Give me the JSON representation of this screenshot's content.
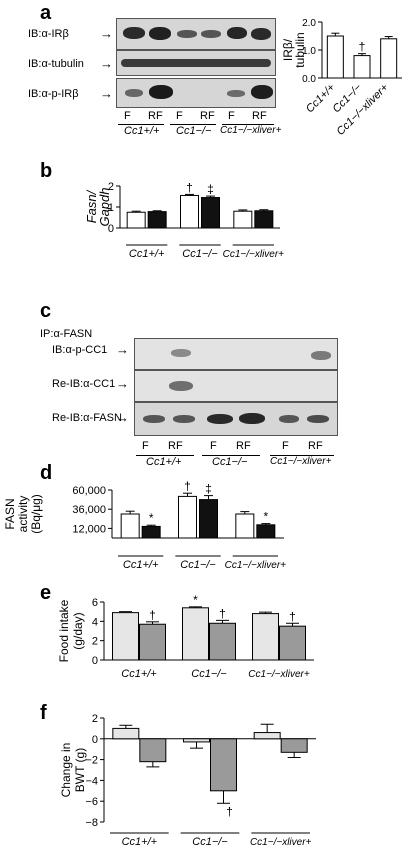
{
  "figure": {
    "panel_a": {
      "letter": "a",
      "blot_rows": [
        "IB:α-IRβ",
        "IB:α-tubulin",
        "IB:α-p-IRβ"
      ],
      "lanes": [
        "F",
        "RF",
        "F",
        "RF",
        "F",
        "RF"
      ],
      "groups": [
        "Cc1+/+",
        "Cc1−/−",
        "Cc1−/−xliver+"
      ]
    },
    "panel_b": {
      "letter": "b"
    },
    "panel_c": {
      "letter": "c",
      "ip_label": "IP:α-FASN",
      "blot_rows": [
        "IB:α-p-CC1",
        "Re-IB:α-CC1",
        "Re-IB:α-FASN"
      ],
      "lanes": [
        "F",
        "RF",
        "F",
        "RF",
        "F",
        "RF"
      ],
      "groups": [
        "Cc1+/+",
        "Cc1−/−",
        "Cc1−/−xliver+"
      ]
    },
    "panel_d": {
      "letter": "d"
    },
    "panel_e": {
      "letter": "e"
    },
    "panel_f": {
      "letter": "f"
    }
  },
  "chart_data": [
    {
      "id": "a-inset",
      "type": "bar",
      "ylabel": "IRβ/ tubulin",
      "ylim": [
        0,
        2.0
      ],
      "yticks": [
        0.0,
        1.0,
        2.0
      ],
      "categories": [
        "Cc1+/+",
        "Cc1−/−",
        "Cc1−/−xliver+"
      ],
      "values": [
        1.5,
        0.8,
        1.4
      ],
      "errors": [
        0.1,
        0.07,
        0.08
      ],
      "annotations": [
        "",
        "†",
        ""
      ]
    },
    {
      "id": "b",
      "type": "bar",
      "ylabel": "Fasn/ Gapdh",
      "ylim": [
        0,
        2
      ],
      "yticks": [
        0,
        1,
        2
      ],
      "categories": [
        "Cc1+/+",
        "Cc1−/−",
        "Cc1−/−xliver+"
      ],
      "series": [
        {
          "values": [
            0.75,
            1.55,
            0.8
          ],
          "errors": [
            0.05,
            0.05,
            0.06
          ],
          "annotations": [
            "",
            "†",
            ""
          ],
          "color": "#ffffff"
        },
        {
          "values": [
            0.78,
            1.45,
            0.82
          ],
          "errors": [
            0.04,
            0.07,
            0.05
          ],
          "annotations": [
            "",
            "‡",
            ""
          ],
          "color": "#111111"
        }
      ]
    },
    {
      "id": "d",
      "type": "bar",
      "ylabel": "FASN activity (Bq/μg)",
      "ylim": [
        0,
        60000
      ],
      "yticks": [
        "12,000",
        "36,000",
        "60,000"
      ],
      "ytick_values": [
        12000,
        36000,
        60000
      ],
      "categories": [
        "Cc1+/+",
        "Cc1−/−",
        "Cc1−/−xliver+"
      ],
      "series": [
        {
          "values": [
            30000,
            52000,
            30000
          ],
          "errors": [
            3500,
            4000,
            3000
          ],
          "annotations": [
            "",
            "†",
            ""
          ],
          "color": "#ffffff"
        },
        {
          "values": [
            14500,
            48000,
            16500
          ],
          "errors": [
            1500,
            5000,
            1500
          ],
          "annotations": [
            "*",
            "‡",
            "*"
          ],
          "color": "#111111"
        }
      ]
    },
    {
      "id": "e",
      "type": "bar",
      "ylabel": "Food intake (g/day)",
      "ylim": [
        0,
        6
      ],
      "yticks": [
        0,
        2,
        4,
        6
      ],
      "categories": [
        "Cc1+/+",
        "Cc1−/−",
        "Cc1−/−xliver+"
      ],
      "series": [
        {
          "values": [
            4.9,
            5.4,
            4.8
          ],
          "errors": [
            0.1,
            0.1,
            0.15
          ],
          "annotations": [
            "",
            "*",
            ""
          ],
          "color": "#e6e6e6"
        },
        {
          "values": [
            3.7,
            3.8,
            3.5
          ],
          "errors": [
            0.25,
            0.3,
            0.3
          ],
          "annotations": [
            "†",
            "†",
            "†"
          ],
          "color": "#9a9a9a"
        }
      ]
    },
    {
      "id": "f",
      "type": "bar",
      "ylabel": "Change in BWT (g)",
      "ylim": [
        -8,
        2
      ],
      "yticks": [
        2,
        0,
        -2,
        -4,
        -6,
        -8
      ],
      "categories": [
        "Cc1+/+",
        "Cc1−/−",
        "Cc1−/−xliver+"
      ],
      "series": [
        {
          "values": [
            1.0,
            -0.3,
            0.6
          ],
          "errors": [
            0.3,
            0.6,
            0.8
          ],
          "annotations": [
            "",
            "",
            ""
          ],
          "color": "#e6e6e6"
        },
        {
          "values": [
            -2.2,
            -5.0,
            -1.3
          ],
          "errors": [
            0.5,
            1.2,
            0.5
          ],
          "annotations": [
            "",
            "†",
            ""
          ],
          "color": "#9a9a9a"
        }
      ]
    }
  ]
}
